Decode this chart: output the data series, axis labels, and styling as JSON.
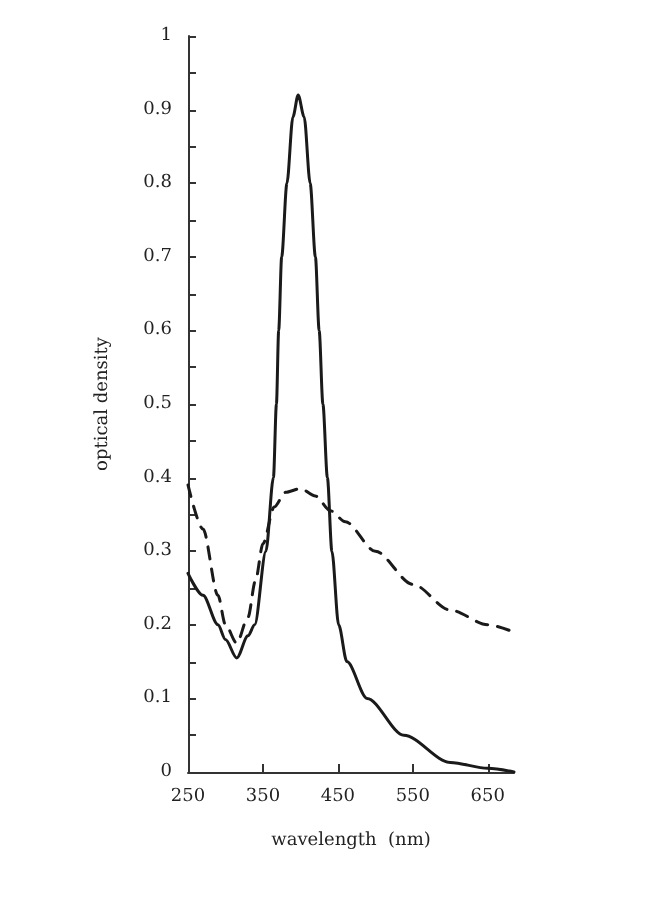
{
  "chart_data": {
    "type": "line",
    "xlabel": "wavelength  (nm)",
    "ylabel": "optical density",
    "xlim": [
      250,
      685
    ],
    "xticks": [
      250,
      350,
      450,
      550,
      650
    ],
    "ylim": [
      0,
      1.0
    ],
    "yticks": [
      0,
      {
        "value": 0.05,
        "label": null
      },
      0.1,
      {
        "value": 0.15,
        "label": null
      },
      0.2,
      {
        "value": 0.25,
        "label": null
      },
      0.3,
      {
        "value": 0.35,
        "label": null
      },
      0.4,
      {
        "value": 0.45,
        "label": null
      },
      0.5,
      {
        "value": 0.55,
        "label": null
      },
      0.6,
      {
        "value": 0.65,
        "label": null
      },
      0.7,
      {
        "value": 0.75,
        "label": null
      },
      0.8,
      {
        "value": 0.85,
        "label": null
      },
      0.9,
      {
        "value": 0.95,
        "label": null
      },
      1.0
    ],
    "grid": false,
    "marker": "none",
    "series": [
      {
        "color": "#1a1a1a",
        "line_style": "solid",
        "x": [
          250,
          270,
          290,
          300,
          315,
          330,
          339,
          354,
          364,
          368,
          371,
          375,
          382,
          390,
          397,
          405,
          413,
          420,
          425,
          430,
          436,
          442,
          451,
          462,
          489,
          538,
          600,
          650,
          685
        ],
        "values": [
          0.27,
          0.24,
          0.2,
          0.18,
          0.155,
          0.185,
          0.2,
          0.3,
          0.4,
          0.5,
          0.6,
          0.7,
          0.8,
          0.89,
          0.92,
          0.89,
          0.8,
          0.7,
          0.6,
          0.5,
          0.4,
          0.3,
          0.2,
          0.15,
          0.1,
          0.05,
          0.013,
          0.005,
          0
        ]
      },
      {
        "color": "#1a1a1a",
        "line_style": "dashed",
        "x": [
          250,
          270,
          290,
          300,
          315,
          330,
          340,
          350,
          365,
          380,
          400,
          420,
          440,
          460,
          500,
          550,
          600,
          650,
          685
        ],
        "values": [
          0.39,
          0.33,
          0.24,
          0.2,
          0.175,
          0.21,
          0.26,
          0.31,
          0.36,
          0.38,
          0.385,
          0.375,
          0.355,
          0.34,
          0.3,
          0.255,
          0.22,
          0.2,
          0.19
        ]
      }
    ]
  }
}
